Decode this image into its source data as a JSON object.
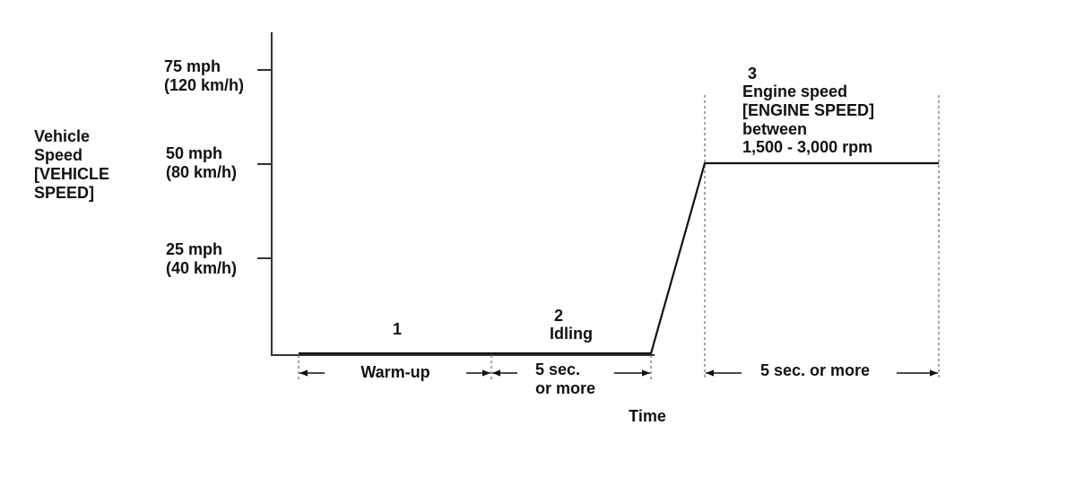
{
  "diagram": {
    "y_axis_title": [
      "Vehicle",
      "Speed",
      "[VEHICLE",
      "SPEED]"
    ],
    "x_axis_title": "Time",
    "y_ticks": [
      {
        "value": 75,
        "mph": "75 mph",
        "kmh": "(120 km/h)"
      },
      {
        "value": 50,
        "mph": "50 mph",
        "kmh": "(80 km/h)"
      },
      {
        "value": 25,
        "mph": "25 mph",
        "kmh": "(40 km/h)"
      }
    ],
    "phases": [
      {
        "number": "1",
        "label": "",
        "interval": "Warm-up"
      },
      {
        "number": "2",
        "label": "Idling",
        "interval_lines": [
          "5 sec.",
          "or more"
        ]
      },
      {
        "number": "3",
        "label_lines": [
          "Engine speed",
          "[ENGINE SPEED]",
          "between",
          "1,500 - 3,000 rpm"
        ],
        "interval": "5 sec. or more"
      }
    ],
    "speed_profile": [
      {
        "phase": "1-2",
        "speed_mph": 0
      },
      {
        "phase": "ramp",
        "speed_mph_from": 0,
        "speed_mph_to": 50
      },
      {
        "phase": "3",
        "speed_mph": 50
      }
    ],
    "colors": {
      "line": "#111111",
      "guide": "#777777",
      "background": "#ffffff"
    }
  }
}
